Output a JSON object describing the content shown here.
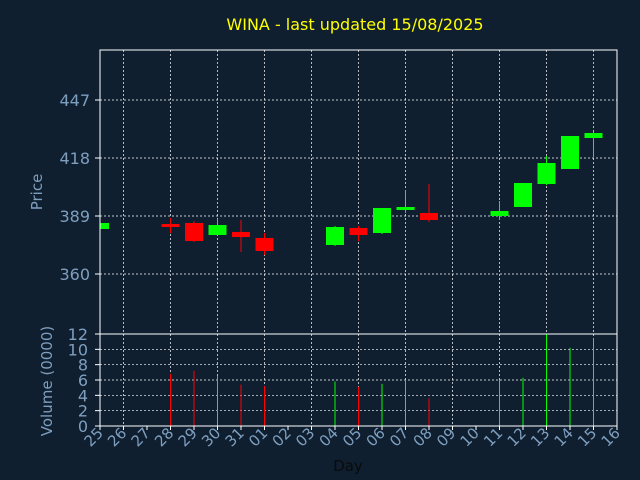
{
  "title": "WINA - last updated 15/08/2025",
  "colors": {
    "background": "#0f1f30",
    "up": "#00ff00",
    "down": "#ff0000",
    "frame": "#ffffff",
    "grid": "#ffffff",
    "title": "#ffff00",
    "axis_text": "#7f9fbf"
  },
  "chart_data": [
    {
      "type": "candlestick",
      "title": "WINA - last updated 15/08/2025",
      "ylabel": "Price",
      "ylim": [
        330,
        472
      ],
      "yticks": [
        360,
        389,
        418,
        447
      ],
      "grid": true,
      "x_categories": [
        "25",
        "26",
        "27",
        "28",
        "29",
        "30",
        "31",
        "01",
        "02",
        "03",
        "04",
        "05",
        "06",
        "07",
        "08",
        "09",
        "10",
        "11",
        "12",
        "13",
        "14",
        "15",
        "16"
      ],
      "candles": [
        {
          "day": "25",
          "open": 382.5,
          "close": 385.5,
          "high": 385.5,
          "low": 382.5
        },
        {
          "day": "28",
          "open": 385.0,
          "close": 383.5,
          "high": 388.0,
          "low": 380.5
        },
        {
          "day": "29",
          "open": 385.5,
          "close": 376.5,
          "high": 386.5,
          "low": 376.0
        },
        {
          "day": "30",
          "open": 379.5,
          "close": 384.5,
          "high": 387.5,
          "low": 379.5
        },
        {
          "day": "31",
          "open": 381.0,
          "close": 378.5,
          "high": 387.0,
          "low": 371.0
        },
        {
          "day": "01",
          "open": 378.0,
          "close": 371.5,
          "high": 380.5,
          "low": 369.5
        },
        {
          "day": "04",
          "open": 374.5,
          "close": 383.5,
          "high": 384.0,
          "low": 374.0
        },
        {
          "day": "05",
          "open": 383.0,
          "close": 379.5,
          "high": 384.0,
          "low": 376.5
        },
        {
          "day": "06",
          "open": 380.5,
          "close": 393.0,
          "high": 393.0,
          "low": 380.0
        },
        {
          "day": "07",
          "open": 392.0,
          "close": 393.5,
          "high": 402.0,
          "low": 390.5
        },
        {
          "day": "08",
          "open": 390.5,
          "close": 387.0,
          "high": 405.0,
          "low": 386.0
        },
        {
          "day": "11",
          "open": 389.0,
          "close": 391.5,
          "high": 396.5,
          "low": 387.0
        },
        {
          "day": "12",
          "open": 393.5,
          "close": 405.5,
          "high": 405.5,
          "low": 393.5
        },
        {
          "day": "13",
          "open": 405.0,
          "close": 415.5,
          "high": 419.0,
          "low": 404.5
        },
        {
          "day": "14",
          "open": 412.5,
          "close": 429.0,
          "high": 429.0,
          "low": 412.5
        },
        {
          "day": "15",
          "open": 428.0,
          "close": 430.5,
          "high": 431.0,
          "low": 418.5
        }
      ]
    },
    {
      "type": "bar",
      "xlabel": "Day",
      "ylabel": "Volume (0000)",
      "ylim": [
        0,
        12
      ],
      "yticks": [
        0,
        2,
        4,
        6,
        8,
        10,
        12
      ],
      "grid": true,
      "categories": [
        "25",
        "26",
        "27",
        "28",
        "29",
        "30",
        "31",
        "01",
        "02",
        "03",
        "04",
        "05",
        "06",
        "07",
        "08",
        "09",
        "10",
        "11",
        "12",
        "13",
        "14",
        "15",
        "16"
      ],
      "bars": [
        {
          "day": "28",
          "value": 6.8,
          "direction": "down"
        },
        {
          "day": "29",
          "value": 7.2,
          "direction": "down"
        },
        {
          "day": "30",
          "value": 6.5,
          "direction": "up"
        },
        {
          "day": "31",
          "value": 5.4,
          "direction": "down"
        },
        {
          "day": "01",
          "value": 5.2,
          "direction": "down"
        },
        {
          "day": "04",
          "value": 5.8,
          "direction": "up"
        },
        {
          "day": "05",
          "value": 5.1,
          "direction": "down"
        },
        {
          "day": "06",
          "value": 5.5,
          "direction": "up"
        },
        {
          "day": "07",
          "value": 6.0,
          "direction": "up"
        },
        {
          "day": "08",
          "value": 3.6,
          "direction": "down"
        },
        {
          "day": "11",
          "value": 6.0,
          "direction": "up"
        },
        {
          "day": "12",
          "value": 6.3,
          "direction": "up"
        },
        {
          "day": "13",
          "value": 12.0,
          "direction": "up"
        },
        {
          "day": "14",
          "value": 10.2,
          "direction": "up"
        },
        {
          "day": "15",
          "value": 11.5,
          "direction": "up"
        }
      ]
    }
  ]
}
